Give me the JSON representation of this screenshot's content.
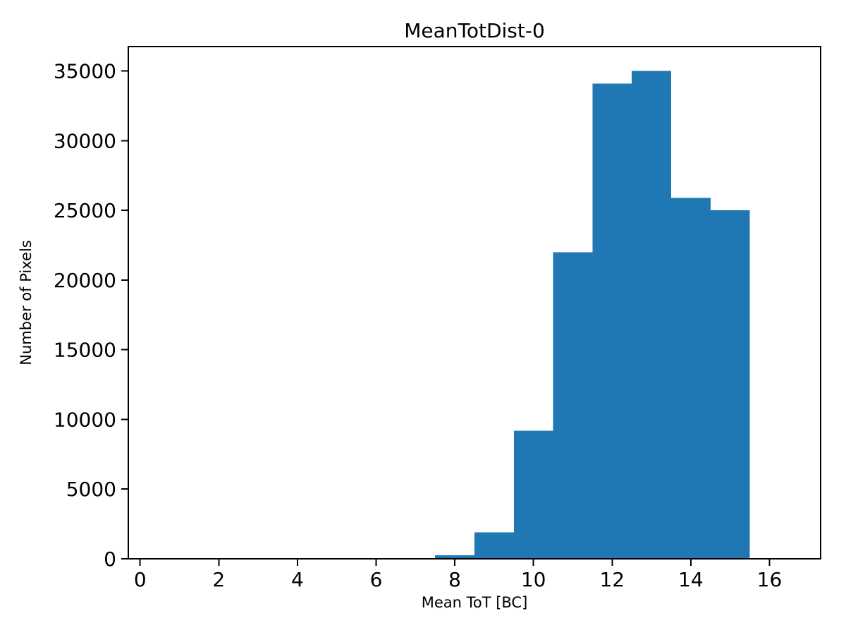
{
  "figure": {
    "background_color": "#ffffff",
    "text_color": "#000000",
    "spine_color": "#000000"
  },
  "chart_data": {
    "type": "bar",
    "subtype": "histogram",
    "title": "MeanTotDist-0",
    "xlabel": "Mean ToT [BC]",
    "ylabel": "Number of Pixels",
    "bar_color": "#1f77b4",
    "bin_edges": [
      7.5,
      8.5,
      9.5,
      10.5,
      11.5,
      12.5,
      13.5,
      14.5,
      15.5
    ],
    "bin_centers": [
      8,
      9,
      10,
      11,
      12,
      13,
      14,
      15
    ],
    "values": [
      250,
      1900,
      9200,
      22000,
      34100,
      35000,
      25900,
      25000
    ],
    "xticks": [
      0,
      2,
      4,
      6,
      8,
      10,
      12,
      14,
      16
    ],
    "yticks": [
      0,
      5000,
      10000,
      15000,
      20000,
      25000,
      30000,
      35000
    ],
    "xlim": [
      -0.3,
      17.3
    ],
    "ylim": [
      0,
      36750
    ],
    "grid": false,
    "legend_position": "none"
  }
}
